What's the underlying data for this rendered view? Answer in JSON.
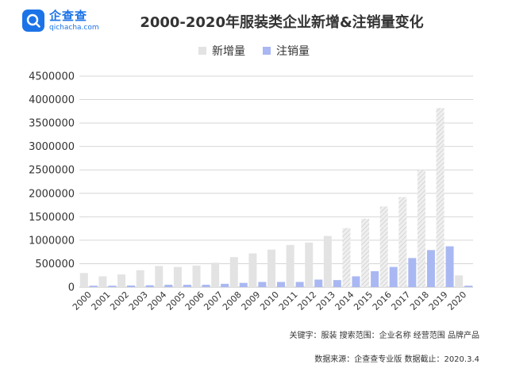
{
  "header": {
    "logo_name": "企查查",
    "logo_url": "qichacha.com",
    "title": "2000-2020年服装类企业新增&注销量变化"
  },
  "footer": {
    "keywords": "关键字：服装  搜索范围：企业名称  经营范围  品牌产品",
    "source": "数据来源：企查查专业版  数据截止：2020.3.4"
  },
  "colors": {
    "new": "#e3e3e3",
    "cancel": "#a9b8f2",
    "grid": "#d6d6d6",
    "logo": "#1b73e8"
  },
  "chart_data": {
    "type": "bar",
    "title": "2000-2020年服装类企业新增&注销量变化",
    "xlabel": "",
    "ylabel": "",
    "categories": [
      "2000",
      "2001",
      "2002",
      "2003",
      "2004",
      "2005",
      "2006",
      "2007",
      "2008",
      "2009",
      "2010",
      "2011",
      "2012",
      "2013",
      "2014",
      "2015",
      "2016",
      "2017",
      "2018",
      "2019",
      "2020"
    ],
    "series": [
      {
        "name": "新增量",
        "values": [
          300000,
          230000,
          270000,
          360000,
          450000,
          430000,
          460000,
          520000,
          640000,
          720000,
          800000,
          900000,
          950000,
          1090000,
          1260000,
          1460000,
          1720000,
          1920000,
          2500000,
          3820000,
          250000
        ]
      },
      {
        "name": "注销量",
        "values": [
          30000,
          30000,
          35000,
          40000,
          50000,
          50000,
          50000,
          70000,
          90000,
          110000,
          110000,
          110000,
          160000,
          150000,
          230000,
          340000,
          430000,
          620000,
          790000,
          870000,
          30000
        ]
      }
    ],
    "ylim": [
      0,
      4500000
    ],
    "yticks": [
      0,
      500000,
      1000000,
      1500000,
      2000000,
      2500000,
      3000000,
      3500000,
      4000000,
      4500000
    ],
    "ytick_labels": [
      "0",
      "500000",
      "1000000",
      "1500000",
      "2000000",
      "2500000",
      "3000000",
      "3500000",
      "4000000",
      "4500000"
    ],
    "grid": true,
    "legend_position": "top-center"
  }
}
